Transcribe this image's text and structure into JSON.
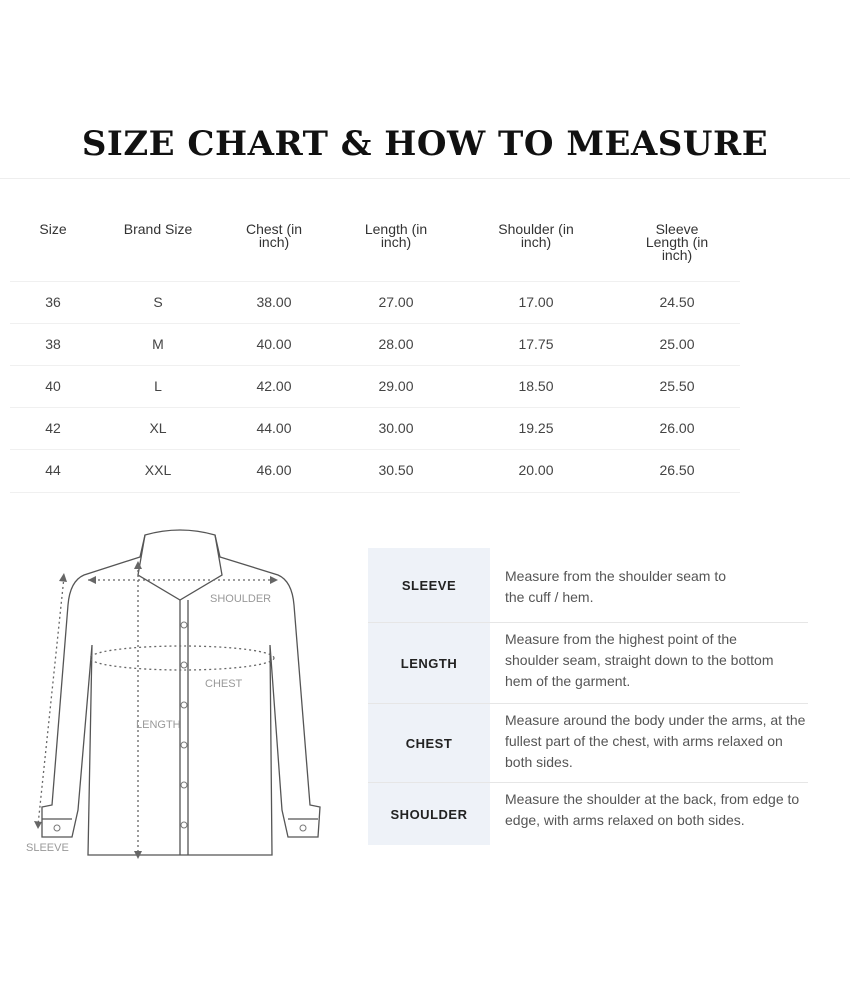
{
  "title": "SIZE CHART & HOW TO MEASURE",
  "size_table": {
    "headers": [
      "Size",
      "Brand Size",
      "Chest (in inch)",
      "Length (in inch)",
      "Shoulder (in inch)",
      "Sleeve Length (in inch)"
    ],
    "rows": [
      [
        "36",
        "S",
        "38.00",
        "27.00",
        "17.00",
        "24.50"
      ],
      [
        "38",
        "M",
        "40.00",
        "28.00",
        "17.75",
        "25.00"
      ],
      [
        "40",
        "L",
        "42.00",
        "29.00",
        "18.50",
        "25.50"
      ],
      [
        "42",
        "XL",
        "44.00",
        "30.00",
        "19.25",
        "26.00"
      ],
      [
        "44",
        "XXL",
        "46.00",
        "30.50",
        "20.00",
        "26.50"
      ]
    ]
  },
  "diagram": {
    "labels": {
      "shoulder": "SHOULDER",
      "chest": "CHEST",
      "length": "LENGTH",
      "sleeve": "SLEEVE"
    }
  },
  "measure_guide": [
    {
      "label": "SLEEVE",
      "text": "Measure from the shoulder seam to the cuff / hem."
    },
    {
      "label": "LENGTH",
      "text": "Measure from the highest point of the shoulder seam, straight down to the bottom hem of the garment."
    },
    {
      "label": "CHEST",
      "text": "Measure around the body under the arms, at the fullest part of the chest, with arms relaxed on both sides."
    },
    {
      "label": "SHOULDER",
      "text": "Measure the shoulder at the back, from edge to edge, with arms relaxed on both sides."
    }
  ]
}
